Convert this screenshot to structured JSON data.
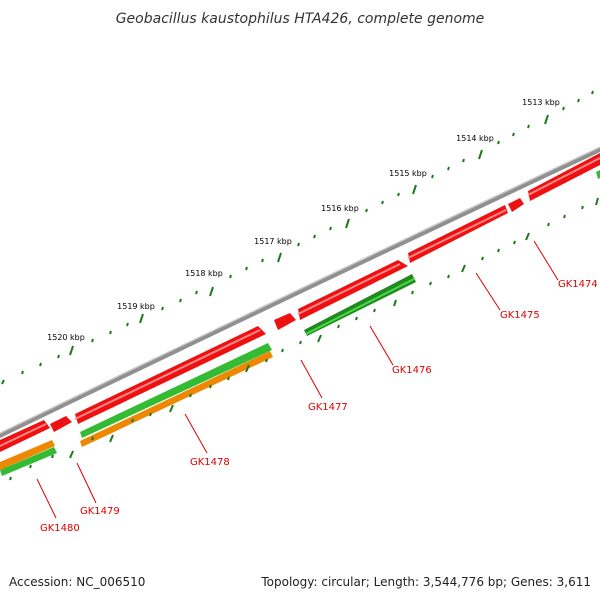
{
  "title": "Geobacillus kaustophilus HTA426, complete genome",
  "footer": {
    "accession": "Accession: NC_006510",
    "stats": "Topology: circular; Length: 3,544,776 bp; Genes: 3,611"
  },
  "scale_labels": [
    "1513 kbp",
    "1514 kbp",
    "1515 kbp",
    "1516 kbp",
    "1517 kbp",
    "1518 kbp",
    "1519 kbp",
    "1520 kbp"
  ],
  "genes": [
    "GK1474",
    "GK1475",
    "GK1476",
    "GK1477",
    "GK1478",
    "GK1479",
    "GK1480"
  ],
  "colors": {
    "backbone": "#808080",
    "forward_gene": "#ee1111",
    "green_feature": "#33bb33",
    "dark_green_feature": "#228822",
    "orange_feature": "#ee8800",
    "tick": "#1a7a1a",
    "gene_label": "#e00000"
  },
  "icons": {
    "tick-marks": "dash",
    "gene-arrow": "arrow-block"
  }
}
